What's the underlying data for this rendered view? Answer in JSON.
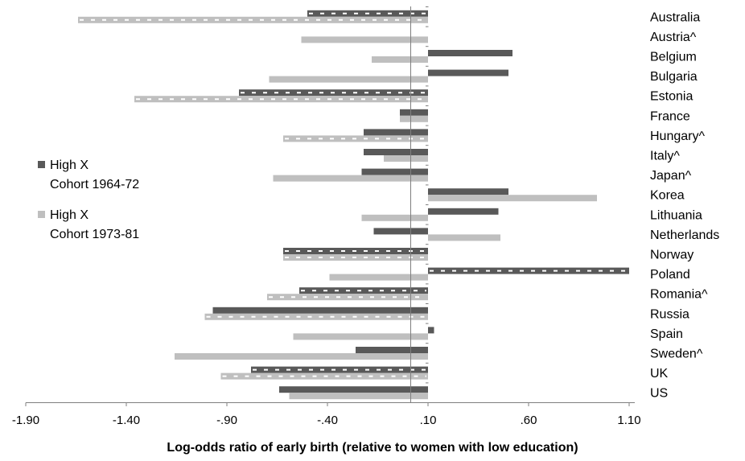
{
  "chart_data": {
    "type": "bar",
    "orientation": "horizontal",
    "xlabel": "Log-odds ratio of early birth (relative to women with low education)",
    "xlim": [
      -1.9,
      1.1
    ],
    "xticks": [
      "-1.90",
      "-1.40",
      "-.90",
      "-.40",
      ".10",
      ".60",
      "1.10"
    ],
    "categories": [
      "Australia",
      "Austria^",
      "Belgium",
      "Bulgaria",
      "Estonia",
      "France",
      "Hungary^",
      "Italy^",
      "Japan^",
      "Korea",
      "Lithuania",
      "Netherlands",
      "Norway",
      "Poland",
      "Romania^",
      "Russia",
      "Spain",
      "Sweden^",
      "UK",
      "US"
    ],
    "legend_position": "left",
    "series": [
      {
        "name": "High X Cohort 1964-72",
        "legend_lines": [
          "High X",
          "Cohort 1964-72"
        ],
        "color": "#595959",
        "values": [
          -0.5,
          null,
          0.52,
          0.5,
          -0.84,
          -0.04,
          -0.22,
          -0.22,
          -0.23,
          0.5,
          0.45,
          -0.17,
          -0.62,
          1.1,
          -0.54,
          -0.97,
          0.13,
          -0.26,
          -0.78,
          -0.64
        ],
        "significant_pattern": [
          true,
          false,
          false,
          false,
          true,
          false,
          false,
          false,
          false,
          false,
          false,
          false,
          true,
          true,
          true,
          false,
          false,
          false,
          true,
          false
        ]
      },
      {
        "name": "High X Cohort 1973-81",
        "legend_lines": [
          "High X",
          "Cohort 1973-81"
        ],
        "color": "#bfbfbf",
        "values": [
          -1.64,
          -0.53,
          -0.18,
          -0.69,
          -1.36,
          -0.04,
          -0.62,
          -0.12,
          -0.67,
          0.94,
          -0.23,
          0.46,
          -0.62,
          -0.39,
          -0.7,
          -1.01,
          -0.57,
          -1.16,
          -0.93,
          -0.59
        ],
        "significant_pattern": [
          true,
          false,
          false,
          false,
          true,
          false,
          true,
          false,
          false,
          false,
          false,
          false,
          true,
          false,
          true,
          true,
          false,
          false,
          true,
          false
        ]
      }
    ]
  }
}
